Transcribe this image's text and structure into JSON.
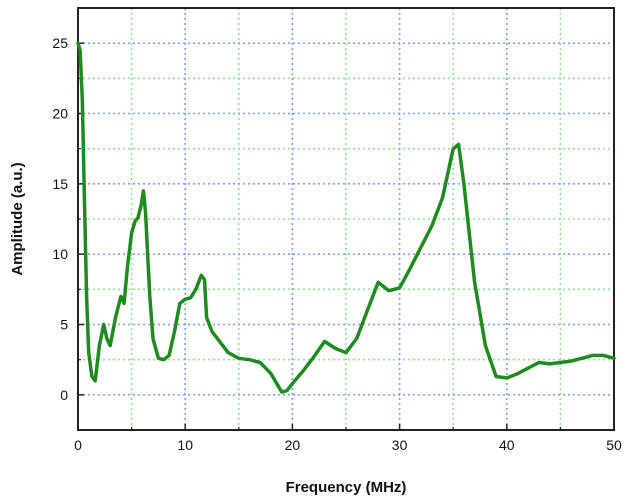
{
  "chart_data": {
    "type": "line",
    "xlabel": "Frequency (MHz)",
    "ylabel": "Amplitude (a.u.)",
    "xlim": [
      0,
      50
    ],
    "ylim": [
      -2.5,
      27.5
    ],
    "xticks": [
      0,
      10,
      20,
      30,
      40,
      50
    ],
    "yticks": [
      0,
      5,
      10,
      15,
      20,
      25
    ],
    "grid": true,
    "colors": {
      "line": "#1f8a1f",
      "grid_major": "#7aa0ff",
      "grid_minor": "#8ee68e",
      "frame": "#222222"
    },
    "series": [
      {
        "x": [
          0.0,
          0.2,
          0.4,
          0.6,
          0.8,
          1.0,
          1.3,
          1.6,
          2.0,
          2.4,
          2.7,
          3.0,
          3.5,
          4.0,
          4.3,
          4.6,
          5.0,
          5.3,
          5.6,
          5.9,
          6.1,
          6.3,
          6.7,
          7.0,
          7.5,
          8.0,
          8.5,
          9.0,
          9.5,
          10.0,
          10.5,
          11.0,
          11.5,
          11.8,
          12.0,
          12.5,
          13.0,
          14.0,
          15.0,
          16.0,
          17.0,
          18.0,
          19.0,
          19.5,
          20.0,
          21.0,
          22.0,
          23.0,
          24.0,
          25.0,
          26.0,
          27.0,
          28.0,
          29.0,
          30.0,
          31.0,
          32.0,
          33.0,
          34.0,
          35.0,
          35.5,
          36.0,
          37.0,
          38.0,
          39.0,
          40.0,
          41.0,
          42.0,
          43.0,
          44.0,
          45.0,
          46.0,
          47.0,
          48.0,
          49.0,
          50.0
        ],
        "y": [
          25.0,
          24.5,
          21.0,
          14.0,
          7.0,
          3.0,
          1.3,
          1.0,
          3.5,
          5.0,
          4.0,
          3.5,
          5.5,
          7.0,
          6.5,
          9.0,
          11.5,
          12.3,
          12.6,
          13.5,
          14.5,
          13.0,
          7.0,
          4.0,
          2.6,
          2.5,
          2.8,
          4.5,
          6.5,
          6.8,
          6.9,
          7.5,
          8.5,
          8.2,
          5.5,
          4.5,
          4.0,
          3.0,
          2.6,
          2.5,
          2.3,
          1.5,
          0.2,
          0.3,
          0.8,
          1.7,
          2.7,
          3.8,
          3.3,
          3.0,
          4.0,
          6.0,
          8.0,
          7.4,
          7.6,
          9.0,
          10.5,
          12.0,
          14.0,
          17.5,
          17.8,
          15.0,
          8.0,
          3.5,
          1.3,
          1.2,
          1.5,
          1.9,
          2.3,
          2.2,
          2.3,
          2.4,
          2.6,
          2.8,
          2.8,
          2.6
        ]
      }
    ]
  }
}
